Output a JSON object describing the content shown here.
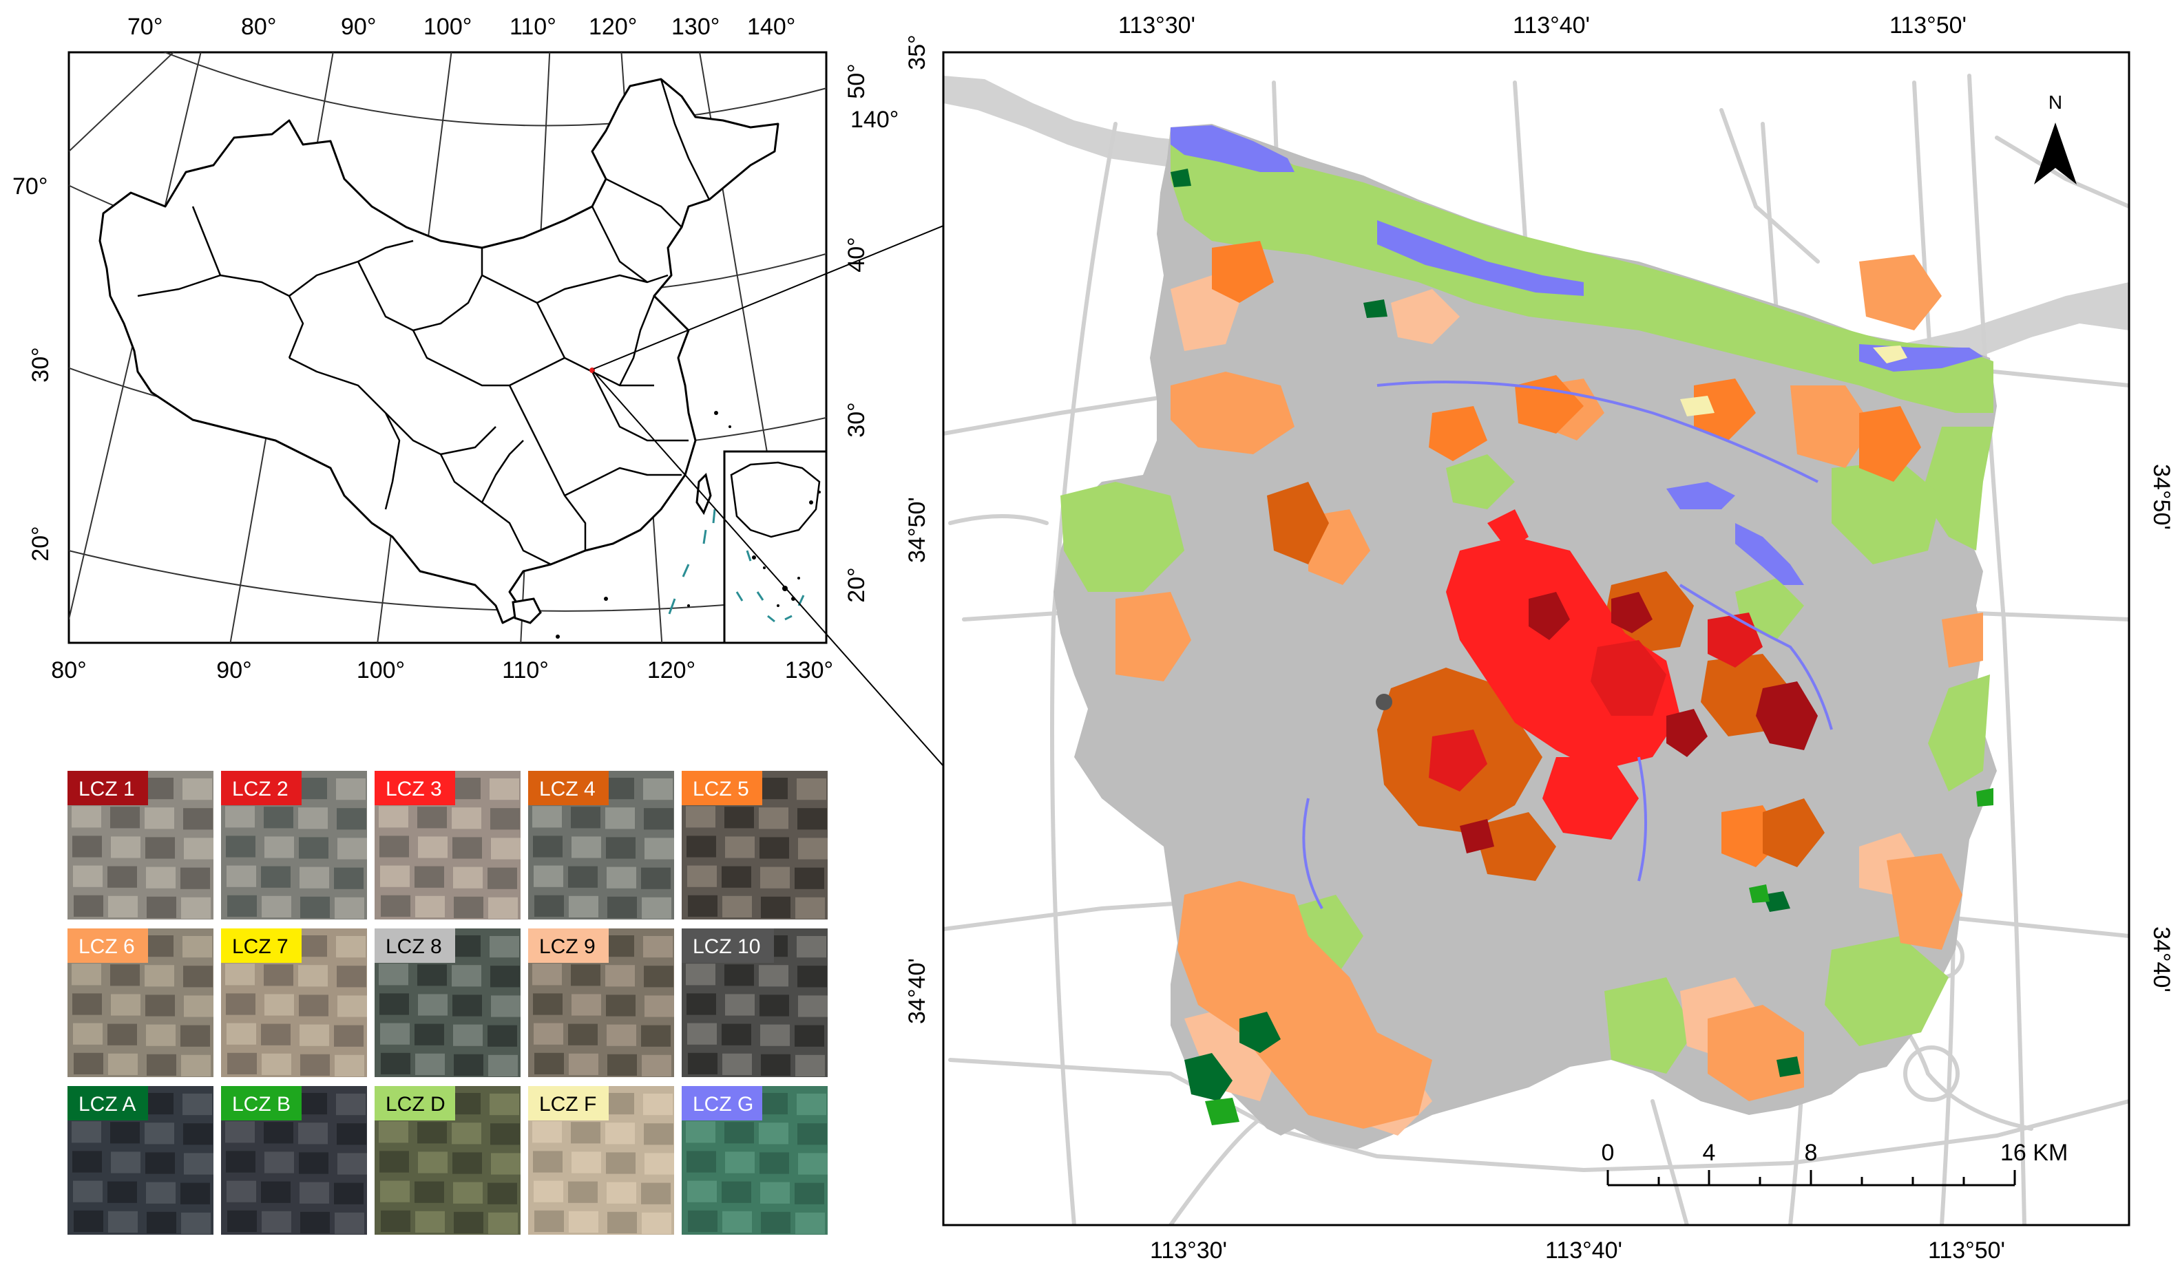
{
  "china_map": {
    "top_longitudes": [
      "70°",
      "80°",
      "90°",
      "100°",
      "110°",
      "120°",
      "130°",
      "140°"
    ],
    "bottom_longitudes": [
      "80°",
      "90°",
      "100°",
      "110°",
      "120°",
      "130°"
    ],
    "left_latitudes": [
      "70°",
      "30°",
      "20°"
    ],
    "right_labels": [
      "50°",
      "140°",
      "40°",
      "30°",
      "20°"
    ]
  },
  "study_map": {
    "top_longitudes": [
      "113°30'",
      "113°40'",
      "113°50'"
    ],
    "bottom_longitudes": [
      "113°30'",
      "113°40'",
      "113°50'"
    ],
    "left_latitudes": [
      "35°",
      "34°50'",
      "34°40'"
    ],
    "right_latitudes": [
      "34°50'",
      "34°40'"
    ],
    "north_label": "N",
    "scale": {
      "ticks": [
        "0",
        "4",
        "8",
        "16 KM"
      ]
    }
  },
  "legend": {
    "items": [
      {
        "label": "LCZ 1",
        "color": "#a50f15",
        "text_color": "#ffffff",
        "photo": [
          "#8e8a82",
          "#5b5752",
          "#b7b1a5"
        ]
      },
      {
        "label": "LCZ 2",
        "color": "#e31a1c",
        "text_color": "#ffffff",
        "photo": [
          "#7d7e78",
          "#4e5551",
          "#a9a89f"
        ]
      },
      {
        "label": "LCZ 3",
        "color": "#ff2020",
        "text_color": "#ffffff",
        "photo": [
          "#9c8f86",
          "#666059",
          "#c7b9aa"
        ]
      },
      {
        "label": "LCZ 4",
        "color": "#d95f0e",
        "text_color": "#ffffff",
        "photo": [
          "#6d716c",
          "#444a45",
          "#9fa19a"
        ]
      },
      {
        "label": "LCZ 5",
        "color": "#fd7f28",
        "text_color": "#ffffff",
        "photo": [
          "#5d5750",
          "#2f2b27",
          "#8e8377"
        ]
      },
      {
        "label": "LCZ 6",
        "color": "#fc9e5a",
        "text_color": "#ffffff",
        "photo": [
          "#8c8475",
          "#59534a",
          "#b4aa96"
        ]
      },
      {
        "label": "LCZ 7",
        "color": "#ffee00",
        "text_color": "#000000",
        "photo": [
          "#a49582",
          "#70665a",
          "#c6b8a2"
        ]
      },
      {
        "label": "LCZ 8",
        "color": "#bdbdbd",
        "text_color": "#000000",
        "photo": [
          "#4f5a53",
          "#2a312d",
          "#7f8a82"
        ]
      },
      {
        "label": "LCZ 9",
        "color": "#fbbf98",
        "text_color": "#000000",
        "photo": [
          "#7d7466",
          "#4b453b",
          "#a8998a"
        ]
      },
      {
        "label": "LCZ 10",
        "color": "#555555",
        "text_color": "#ffffff",
        "photo": [
          "#4c4c4a",
          "#272726",
          "#7d7c78"
        ]
      },
      {
        "label": "LCZ A",
        "color": "#006d2c",
        "text_color": "#ffffff",
        "photo": [
          "#343a42",
          "#1d2127",
          "#555c63"
        ]
      },
      {
        "label": "LCZ B",
        "color": "#1ea71e",
        "text_color": "#ffffff",
        "photo": [
          "#363941",
          "#1f2127",
          "#575a60"
        ]
      },
      {
        "label": "LCZ D",
        "color": "#a6d96a",
        "text_color": "#000000",
        "photo": [
          "#5a6044",
          "#3b3f2d",
          "#80855f"
        ]
      },
      {
        "label": "LCZ F",
        "color": "#f6f0b0",
        "text_color": "#000000",
        "photo": [
          "#c3b39b",
          "#968975",
          "#dccbb2"
        ]
      },
      {
        "label": "LCZ G",
        "color": "#7b7bf6",
        "text_color": "#ffffff",
        "photo": [
          "#3f7a62",
          "#2e5e4b",
          "#5c9a80"
        ]
      }
    ]
  }
}
